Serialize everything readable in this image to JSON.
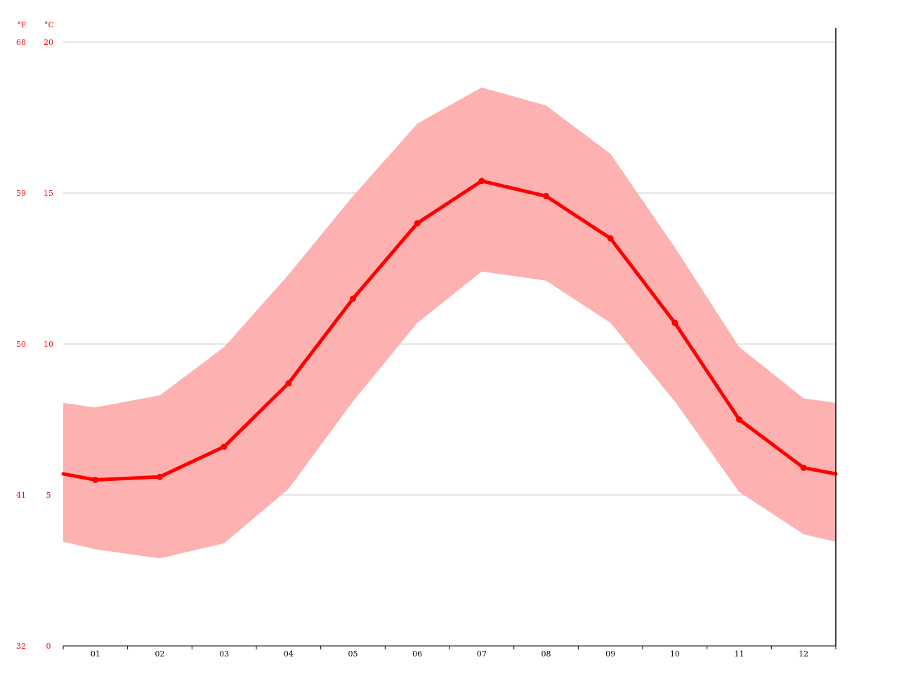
{
  "chart_data": {
    "type": "line",
    "title": "",
    "xlabel": "",
    "ylabel": "",
    "units": {
      "fahrenheit": "°F",
      "celsius": "°C"
    },
    "categories": [
      "01",
      "02",
      "03",
      "04",
      "05",
      "06",
      "07",
      "08",
      "09",
      "10",
      "11",
      "12"
    ],
    "series": [
      {
        "role": "mean",
        "values": [
          5.5,
          5.6,
          6.6,
          8.7,
          11.5,
          14.0,
          15.4,
          14.9,
          13.5,
          10.7,
          7.5,
          5.9
        ]
      },
      {
        "role": "max",
        "values": [
          7.9,
          8.3,
          9.9,
          12.3,
          14.9,
          17.3,
          18.5,
          17.9,
          16.3,
          13.2,
          9.9,
          8.2
        ]
      },
      {
        "role": "min",
        "values": [
          3.2,
          2.9,
          3.4,
          5.2,
          8.1,
          10.7,
          12.4,
          12.1,
          10.7,
          8.1,
          5.1,
          3.7
        ]
      }
    ],
    "ylim": [
      0,
      20
    ],
    "yticks_c": [
      "0",
      "5",
      "10",
      "15",
      "20"
    ],
    "yticks_f": [
      "32",
      "41",
      "50",
      "59",
      "68"
    ],
    "grid": true,
    "colors": {
      "line": "#ff0000",
      "band": "#fdb1b1",
      "axis_text": "#ff0000",
      "grid": "#c8c8c8"
    }
  }
}
